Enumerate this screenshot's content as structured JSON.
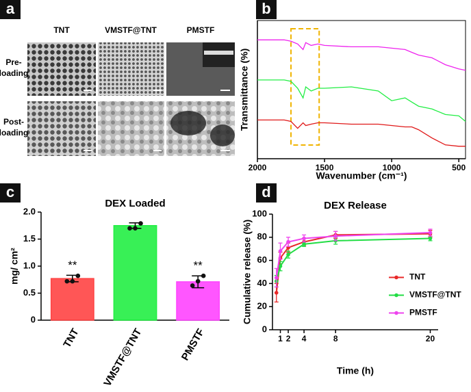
{
  "image_panel": {
    "panel_label": "a",
    "columns": [
      "TNT",
      "VMSTF@TNT",
      "PMSTF"
    ],
    "rows": [
      [
        "Pre-",
        "loading"
      ],
      [
        "Post-",
        "loading"
      ]
    ]
  },
  "chart_data": [
    {
      "type": "line",
      "panel_label": "b",
      "xlabel": "Wavenumber (cm⁻¹)",
      "ylabel": "Transmittance (%)",
      "x": [
        2000,
        1800,
        1750,
        1700,
        1660,
        1640,
        1600,
        1550,
        1500,
        1300,
        1100,
        1000,
        900,
        850,
        800,
        700,
        600,
        500,
        450
      ],
      "xlim": [
        2000,
        450
      ],
      "xticks": [
        2000,
        1500,
        1000,
        500
      ],
      "ylim": [
        0,
        100
      ],
      "frame": true,
      "highlight_x": [
        1750,
        1540
      ],
      "highlight_color": "#f0b400",
      "series": [
        {
          "color": "#ee22ee",
          "values": [
            86,
            86,
            85,
            83,
            79,
            84,
            82,
            83,
            82,
            81,
            81,
            80,
            79,
            77,
            75,
            73,
            68,
            65,
            64
          ]
        },
        {
          "color": "#22ee44",
          "values": [
            57,
            57,
            56,
            51,
            44,
            52,
            49,
            51,
            51,
            52,
            49,
            42,
            44,
            41,
            38,
            36,
            32,
            31,
            27
          ]
        },
        {
          "color": "#e01818",
          "values": [
            28,
            28,
            27,
            22,
            26,
            24,
            25,
            26,
            26,
            25,
            25,
            24,
            23,
            23,
            21,
            15,
            10,
            9,
            9
          ]
        }
      ]
    },
    {
      "type": "bar",
      "panel_label": "c",
      "title": "DEX Loaded",
      "ylabel": "mg/ cm²",
      "categories": [
        "TNT",
        "VMSTF@TNT",
        "PMSTF"
      ],
      "values": [
        0.77,
        1.75,
        0.71
      ],
      "errors": [
        0.06,
        0.05,
        0.11
      ],
      "points": [
        [
          0.72,
          0.72,
          0.82
        ],
        [
          1.7,
          1.7,
          1.79
        ],
        [
          0.64,
          0.72,
          0.82
        ]
      ],
      "annotations": [
        "**",
        null,
        "**"
      ],
      "colors": [
        "#ff4444",
        "#22ee44",
        "#ff44ff"
      ],
      "ylim": [
        0,
        2.0
      ],
      "yticks": [
        0,
        0.5,
        {
          "value": 1.0,
          "label": "1.0"
        },
        1.5,
        {
          "value": 2.0,
          "label": "2.0"
        }
      ]
    },
    {
      "type": "line",
      "panel_label": "d",
      "title": "DEX Release",
      "xlabel": "Time (h)",
      "ylabel": "Cumulative release (%)",
      "x": [
        0.5,
        1,
        2,
        4,
        8,
        20
      ],
      "xlim": [
        0,
        21
      ],
      "xticks": [
        1,
        2,
        4,
        8,
        20
      ],
      "ylim": [
        0,
        100
      ],
      "yticks": [
        0,
        20,
        40,
        60,
        80,
        100
      ],
      "markers": true,
      "legend": "right",
      "series": [
        {
          "name": "TNT",
          "color": "#e82828",
          "values": [
            32,
            62,
            71,
            76,
            82,
            83
          ],
          "errors": [
            8,
            5,
            4,
            3,
            3,
            3
          ]
        },
        {
          "name": "VMSTF@TNT",
          "color": "#22dd44",
          "values": [
            42,
            55,
            65,
            74,
            77,
            79
          ],
          "errors": [
            5,
            4,
            3,
            2,
            3,
            2
          ]
        },
        {
          "name": "PMSTF",
          "color": "#ee44ee",
          "values": [
            45,
            68,
            76,
            79,
            81,
            84
          ],
          "errors": [
            8,
            7,
            4,
            3,
            4,
            3
          ]
        }
      ]
    }
  ]
}
